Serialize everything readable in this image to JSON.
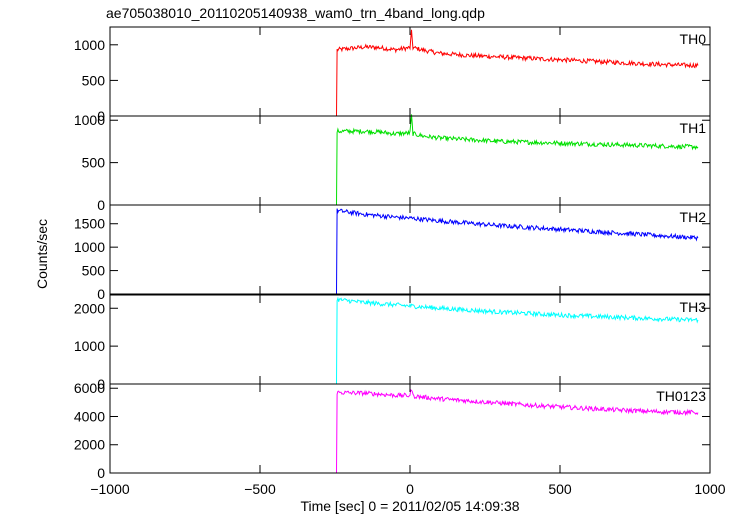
{
  "chart_data": {
    "type": "line",
    "title": "ae705038010_20110205140938_wam0_trn_4band_long.qdp",
    "xlabel": "Time [sec] 0 = 2011/02/05 14:09:38",
    "ylabel": "Counts/sec",
    "xlim": [
      -1000,
      1000
    ],
    "xticks": [
      -1000,
      -500,
      0,
      500,
      1000
    ],
    "xtick_labels": [
      "−1000",
      "−500",
      "0",
      "500",
      "1000"
    ],
    "grid": false,
    "panels": [
      {
        "label": "TH0",
        "color": "#ff0000",
        "ylim": [
          0,
          1250
        ],
        "yticks": [
          0,
          500,
          1000
        ],
        "ytick_labels": [
          "0",
          "500",
          "1000"
        ],
        "x": [
          -960,
          -245,
          -243,
          -150,
          -100,
          -50,
          0,
          5,
          10,
          50,
          100,
          200,
          300,
          400,
          500,
          600,
          700,
          800,
          900,
          960
        ],
        "y": [
          0,
          0,
          930,
          970,
          960,
          930,
          960,
          1180,
          960,
          920,
          880,
          850,
          830,
          810,
          790,
          770,
          750,
          730,
          715,
          710
        ]
      },
      {
        "label": "TH1",
        "color": "#00e000",
        "ylim": [
          0,
          1050
        ],
        "yticks": [
          0,
          500,
          1000
        ],
        "ytick_labels": [
          "0",
          "500",
          "1000"
        ],
        "x": [
          -960,
          -245,
          -243,
          -150,
          -100,
          -50,
          0,
          5,
          10,
          50,
          100,
          200,
          300,
          400,
          500,
          600,
          700,
          800,
          900,
          960
        ],
        "y": [
          0,
          0,
          870,
          870,
          860,
          840,
          850,
          1050,
          840,
          810,
          790,
          770,
          750,
          740,
          730,
          720,
          710,
          700,
          690,
          685
        ]
      },
      {
        "label": "TH2",
        "color": "#0000ff",
        "ylim": [
          0,
          1900
        ],
        "yticks": [
          0,
          500,
          1000,
          1500
        ],
        "ytick_labels": [
          "0",
          "500",
          "1000",
          "1500"
        ],
        "x": [
          -960,
          -245,
          -243,
          -150,
          -100,
          -50,
          0,
          50,
          100,
          200,
          300,
          400,
          500,
          600,
          700,
          800,
          900,
          960
        ],
        "y": [
          0,
          0,
          1780,
          1700,
          1670,
          1640,
          1620,
          1590,
          1560,
          1510,
          1460,
          1420,
          1380,
          1340,
          1300,
          1260,
          1220,
          1200
        ]
      },
      {
        "label": "TH3",
        "color": "#00ffff",
        "ylim": [
          0,
          2350
        ],
        "yticks": [
          0,
          1000,
          2000
        ],
        "ytick_labels": [
          "0",
          "1000",
          "2000"
        ],
        "x": [
          -960,
          -245,
          -243,
          -150,
          -100,
          -50,
          0,
          50,
          100,
          200,
          300,
          400,
          500,
          600,
          700,
          800,
          900,
          960
        ],
        "y": [
          0,
          0,
          2230,
          2150,
          2120,
          2090,
          2060,
          2030,
          2000,
          1950,
          1900,
          1860,
          1820,
          1790,
          1760,
          1730,
          1700,
          1690
        ]
      },
      {
        "label": "TH0123",
        "color": "#ff00ff",
        "ylim": [
          0,
          6300
        ],
        "yticks": [
          0,
          2000,
          4000,
          6000
        ],
        "ytick_labels": [
          "0",
          "2000",
          "4000",
          "6000"
        ],
        "x": [
          -960,
          -245,
          -243,
          -150,
          -100,
          -50,
          0,
          5,
          10,
          50,
          100,
          200,
          300,
          400,
          500,
          600,
          700,
          800,
          900,
          960
        ],
        "y": [
          0,
          0,
          5700,
          5650,
          5580,
          5500,
          5480,
          6000,
          5450,
          5360,
          5250,
          5100,
          4950,
          4800,
          4680,
          4560,
          4450,
          4360,
          4300,
          4280
        ]
      }
    ]
  }
}
